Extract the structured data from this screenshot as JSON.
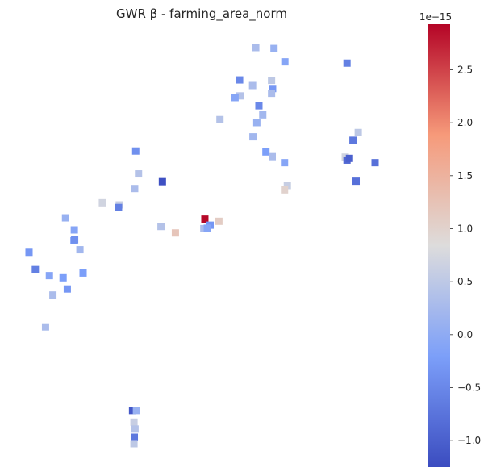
{
  "chart_data": {
    "type": "scatter",
    "title": "GWR β - farming_area_norm",
    "xlabel": "",
    "ylabel": "",
    "axes_visible": false,
    "grid": false,
    "marker": "square",
    "colormap": "coolwarm",
    "colorbar": {
      "location": "right",
      "range": [
        -1.25,
        2.93
      ],
      "ticks": [
        -1.0,
        -0.5,
        0.0,
        0.5,
        1.0,
        1.5,
        2.0,
        2.5
      ],
      "tick_labels": [
        "−1.0",
        "−0.5",
        "0.0",
        "0.5",
        "1.0",
        "1.5",
        "2.0",
        "2.5"
      ],
      "offset_text": "1e−15"
    },
    "points": [
      {
        "x": 0.54,
        "y": 0.975,
        "value": 0.3
      },
      {
        "x": 0.592,
        "y": 0.973,
        "value": 0.1
      },
      {
        "x": 0.623,
        "y": 0.942,
        "value": -0.1
      },
      {
        "x": 0.8,
        "y": 0.939,
        "value": -0.6
      },
      {
        "x": 0.494,
        "y": 0.9,
        "value": -0.5
      },
      {
        "x": 0.585,
        "y": 0.899,
        "value": 0.5
      },
      {
        "x": 0.531,
        "y": 0.887,
        "value": 0.3
      },
      {
        "x": 0.588,
        "y": 0.88,
        "value": -0.3
      },
      {
        "x": 0.585,
        "y": 0.869,
        "value": 0.3
      },
      {
        "x": 0.495,
        "y": 0.863,
        "value": 0.4
      },
      {
        "x": 0.481,
        "y": 0.859,
        "value": -0.1
      },
      {
        "x": 0.549,
        "y": 0.84,
        "value": -0.5
      },
      {
        "x": 0.56,
        "y": 0.819,
        "value": 0.2
      },
      {
        "x": 0.438,
        "y": 0.808,
        "value": 0.4
      },
      {
        "x": 0.543,
        "y": 0.801,
        "value": 0.1
      },
      {
        "x": 0.532,
        "y": 0.768,
        "value": 0.2
      },
      {
        "x": 0.832,
        "y": 0.778,
        "value": 0.5
      },
      {
        "x": 0.817,
        "y": 0.76,
        "value": -0.7
      },
      {
        "x": 0.569,
        "y": 0.733,
        "value": -0.2
      },
      {
        "x": 0.587,
        "y": 0.722,
        "value": 0.3
      },
      {
        "x": 0.198,
        "y": 0.735,
        "value": -0.4
      },
      {
        "x": 0.795,
        "y": 0.721,
        "value": 0.7
      },
      {
        "x": 0.8,
        "y": 0.714,
        "value": -0.9
      },
      {
        "x": 0.807,
        "y": 0.718,
        "value": -1.0
      },
      {
        "x": 0.622,
        "y": 0.708,
        "value": -0.1
      },
      {
        "x": 0.88,
        "y": 0.708,
        "value": -0.8
      },
      {
        "x": 0.206,
        "y": 0.682,
        "value": 0.4
      },
      {
        "x": 0.274,
        "y": 0.664,
        "value": -1.2
      },
      {
        "x": 0.826,
        "y": 0.665,
        "value": -0.8
      },
      {
        "x": 0.195,
        "y": 0.648,
        "value": 0.3
      },
      {
        "x": 0.63,
        "y": 0.655,
        "value": 0.6
      },
      {
        "x": 0.622,
        "y": 0.645,
        "value": 1.0
      },
      {
        "x": 0.103,
        "y": 0.615,
        "value": 0.7
      },
      {
        "x": 0.151,
        "y": 0.61,
        "value": 0.6
      },
      {
        "x": 0.149,
        "y": 0.604,
        "value": -0.6
      },
      {
        "x": 0.395,
        "y": 0.577,
        "value": 2.9
      },
      {
        "x": -0.002,
        "y": 0.58,
        "value": 0.1
      },
      {
        "x": 0.435,
        "y": 0.572,
        "value": 1.1
      },
      {
        "x": 0.27,
        "y": 0.56,
        "value": 0.4
      },
      {
        "x": 0.41,
        "y": 0.563,
        "value": -0.3
      },
      {
        "x": 0.392,
        "y": 0.555,
        "value": 0.3
      },
      {
        "x": 0.402,
        "y": 0.556,
        "value": -0.1
      },
      {
        "x": 0.311,
        "y": 0.545,
        "value": 1.2
      },
      {
        "x": 0.023,
        "y": 0.552,
        "value": -0.1
      },
      {
        "x": 0.022,
        "y": 0.527,
        "value": -0.2
      },
      {
        "x": 0.039,
        "y": 0.506,
        "value": 0.2
      },
      {
        "x": 0.024,
        "y": 0.529,
        "value": -0.4
      },
      {
        "x": -0.106,
        "y": 0.5,
        "value": -0.3
      },
      {
        "x": -0.088,
        "y": 0.46,
        "value": -0.6
      },
      {
        "x": 0.048,
        "y": 0.452,
        "value": -0.2
      },
      {
        "x": -0.048,
        "y": 0.446,
        "value": -0.1
      },
      {
        "x": -0.009,
        "y": 0.441,
        "value": -0.2
      },
      {
        "x": 0.003,
        "y": 0.415,
        "value": -0.3
      },
      {
        "x": -0.038,
        "y": 0.401,
        "value": 0.3
      },
      {
        "x": -0.059,
        "y": 0.327,
        "value": 0.3
      },
      {
        "x": 0.189,
        "y": 0.133,
        "value": -1.1
      },
      {
        "x": 0.2,
        "y": 0.133,
        "value": 0.1
      },
      {
        "x": 0.193,
        "y": 0.106,
        "value": 0.6
      },
      {
        "x": 0.196,
        "y": 0.09,
        "value": 0.4
      },
      {
        "x": 0.194,
        "y": 0.071,
        "value": -0.7
      },
      {
        "x": 0.193,
        "y": 0.056,
        "value": 0.5
      }
    ]
  }
}
